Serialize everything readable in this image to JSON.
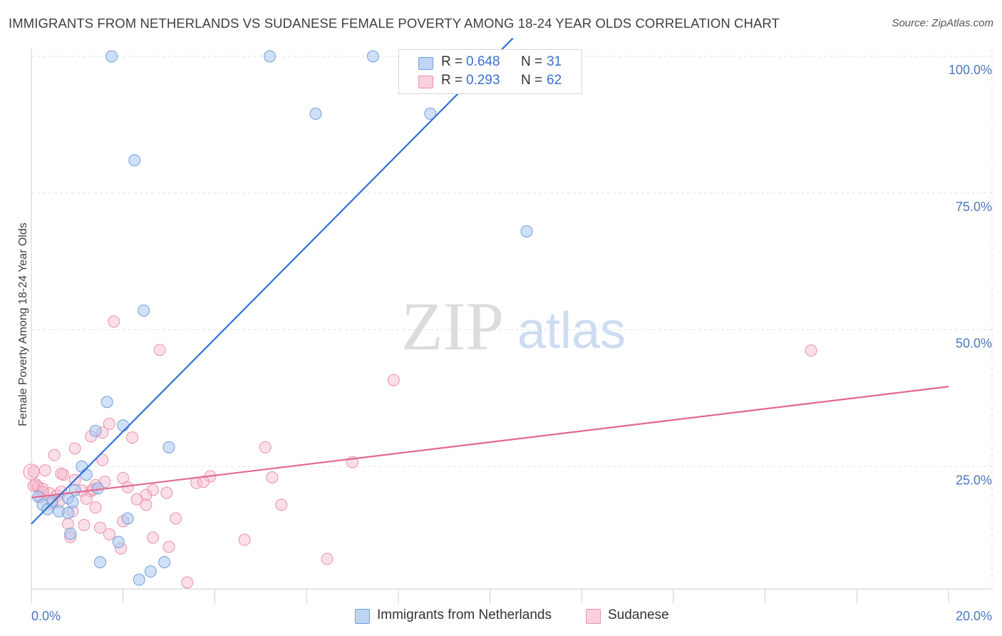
{
  "header": {
    "title": "IMMIGRANTS FROM NETHERLANDS VS SUDANESE FEMALE POVERTY AMONG 18-24 YEAR OLDS CORRELATION CHART",
    "source": "Source: ZipAtlas.com"
  },
  "watermark": {
    "zip": "ZIP",
    "atlas": "atlas"
  },
  "legend": {
    "r_label": "R =",
    "n_label": "N =",
    "series": [
      {
        "r": "0.648",
        "n": "31"
      },
      {
        "r": "0.293",
        "n": "62"
      }
    ]
  },
  "colors": {
    "blue_fill": "#a9c6ef",
    "blue_stroke": "#6f9fe0",
    "blue_line": "#2f72d6",
    "pink_fill": "#f6b8cb",
    "pink_stroke": "#ec91ad",
    "pink_line": "#e2688f",
    "grid": "#e2e2e2",
    "axis_text": "#4a78c0"
  },
  "chart_data": {
    "type": "scatter",
    "title": "IMMIGRANTS FROM NETHERLANDS VS SUDANESE FEMALE POVERTY AMONG 18-24 YEAR OLDS CORRELATION CHART",
    "xlabel": "",
    "ylabel": "Female Poverty Among 18-24 Year Olds",
    "xlim": [
      0,
      20
    ],
    "ylim": [
      0,
      105
    ],
    "x_tick_labels": [
      "0.0%",
      "20.0%"
    ],
    "y_ticks": [
      25,
      50,
      75,
      100
    ],
    "y_tick_labels": [
      "25.0%",
      "50.0%",
      "75.0%",
      "100.0%"
    ],
    "series": [
      {
        "name": "Immigrants from Netherlands",
        "color": "blue",
        "trend": {
          "x": [
            0,
            10.5
          ],
          "y": [
            14.5,
            103.3
          ]
        },
        "points": [
          [
            1.75,
            100
          ],
          [
            5.2,
            100
          ],
          [
            7.45,
            100
          ],
          [
            6.2,
            89.5
          ],
          [
            8.7,
            89.5
          ],
          [
            2.25,
            81
          ],
          [
            10.8,
            68
          ],
          [
            2.45,
            53.5
          ],
          [
            1.65,
            36.8
          ],
          [
            1.4,
            31.5
          ],
          [
            2.0,
            32.5
          ],
          [
            3.0,
            28.5
          ],
          [
            1.1,
            25
          ],
          [
            1.2,
            23.5
          ],
          [
            0.95,
            20.7
          ],
          [
            1.45,
            21
          ],
          [
            0.15,
            19.5
          ],
          [
            0.45,
            18.6
          ],
          [
            0.25,
            18
          ],
          [
            0.35,
            17.2
          ],
          [
            0.8,
            19.2
          ],
          [
            0.9,
            18.5
          ],
          [
            0.6,
            16.8
          ],
          [
            0.8,
            16.5
          ],
          [
            2.1,
            15.5
          ],
          [
            0.85,
            12.7
          ],
          [
            1.9,
            11.2
          ],
          [
            1.5,
            7.5
          ],
          [
            2.9,
            7.5
          ],
          [
            2.6,
            5.8
          ],
          [
            2.35,
            4.3
          ]
        ]
      },
      {
        "name": "Sudanese",
        "color": "pink",
        "trend": {
          "x": [
            0,
            20
          ],
          "y": [
            19.3,
            39.6
          ]
        },
        "points": [
          [
            1.8,
            51.5
          ],
          [
            2.8,
            46.3
          ],
          [
            7.9,
            40.8
          ],
          [
            17.0,
            46.2
          ],
          [
            1.7,
            32.8
          ],
          [
            1.3,
            30.5
          ],
          [
            2.2,
            30.3
          ],
          [
            1.55,
            31.2
          ],
          [
            5.1,
            28.5
          ],
          [
            0.95,
            28.3
          ],
          [
            1.55,
            26.2
          ],
          [
            0.5,
            27.1
          ],
          [
            7.0,
            25.8
          ],
          [
            0.3,
            24.3
          ],
          [
            3.9,
            23.2
          ],
          [
            5.25,
            23.0
          ],
          [
            2.0,
            22.9
          ],
          [
            0.7,
            23.5
          ],
          [
            3.6,
            22.0
          ],
          [
            0.1,
            21.7
          ],
          [
            1.6,
            22.2
          ],
          [
            0.15,
            21.3
          ],
          [
            2.1,
            21.2
          ],
          [
            0.95,
            22.5
          ],
          [
            1.4,
            21.6
          ],
          [
            0.05,
            21.5
          ],
          [
            0.25,
            20.9
          ],
          [
            1.3,
            20.5
          ],
          [
            2.65,
            20.7
          ],
          [
            2.95,
            20.2
          ],
          [
            1.1,
            20.6
          ],
          [
            0.4,
            20.1
          ],
          [
            0.55,
            19.7
          ],
          [
            0.65,
            20.4
          ],
          [
            0.2,
            19.4
          ],
          [
            2.5,
            19.8
          ],
          [
            2.3,
            19.0
          ],
          [
            3.75,
            22.2
          ],
          [
            1.2,
            19.1
          ],
          [
            0.6,
            18.5
          ],
          [
            0.45,
            18.2
          ],
          [
            2.5,
            18.0
          ],
          [
            1.4,
            17.5
          ],
          [
            5.45,
            18.0
          ],
          [
            0.9,
            16.8
          ],
          [
            3.15,
            15.5
          ],
          [
            2.0,
            15.0
          ],
          [
            0.8,
            14.5
          ],
          [
            1.15,
            14.3
          ],
          [
            1.5,
            13.8
          ],
          [
            1.7,
            12.6
          ],
          [
            2.65,
            12.0
          ],
          [
            4.65,
            11.6
          ],
          [
            0.85,
            12.1
          ],
          [
            3.0,
            10.3
          ],
          [
            1.95,
            10.0
          ],
          [
            6.45,
            8.1
          ],
          [
            3.4,
            3.8
          ],
          [
            0.05,
            24.0
          ],
          [
            0.25,
            20.3
          ],
          [
            0.65,
            23.7
          ],
          [
            1.35,
            20.8
          ]
        ]
      }
    ],
    "legend_position": "top-center",
    "grid": true
  }
}
